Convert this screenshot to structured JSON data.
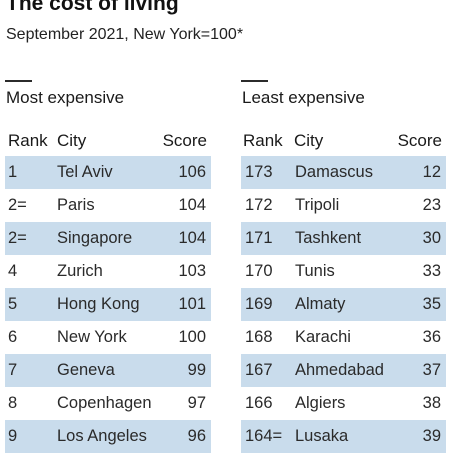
{
  "title": "The cost of living",
  "subtitle": "September 2021, New York=100*",
  "colors": {
    "row_shade": "#c9dcec",
    "text": "#121212",
    "rule": "#2b2b2b"
  },
  "chart_data": {
    "type": "table",
    "tables": [
      {
        "title": "Most expensive",
        "columns": [
          "Rank",
          "City",
          "Score"
        ],
        "rows": [
          [
            "1",
            "Tel Aviv",
            "106"
          ],
          [
            "2=",
            "Paris",
            "104"
          ],
          [
            "2=",
            "Singapore",
            "104"
          ],
          [
            "4",
            "Zurich",
            "103"
          ],
          [
            "5",
            "Hong Kong",
            "101"
          ],
          [
            "6",
            "New York",
            "100"
          ],
          [
            "7",
            "Geneva",
            "99"
          ],
          [
            "8",
            "Copenhagen",
            "97"
          ],
          [
            "9",
            "Los Angeles",
            "96"
          ]
        ]
      },
      {
        "title": "Least expensive",
        "columns": [
          "Rank",
          "City",
          "Score"
        ],
        "rows": [
          [
            "173",
            "Damascus",
            "12"
          ],
          [
            "172",
            "Tripoli",
            "23"
          ],
          [
            "171",
            "Tashkent",
            "30"
          ],
          [
            "170",
            "Tunis",
            "33"
          ],
          [
            "169",
            "Almaty",
            "35"
          ],
          [
            "168",
            "Karachi",
            "36"
          ],
          [
            "167",
            "Ahmedabad",
            "37"
          ],
          [
            "166",
            "Algiers",
            "38"
          ],
          [
            "164=",
            "Lusaka",
            "39"
          ]
        ]
      }
    ]
  }
}
